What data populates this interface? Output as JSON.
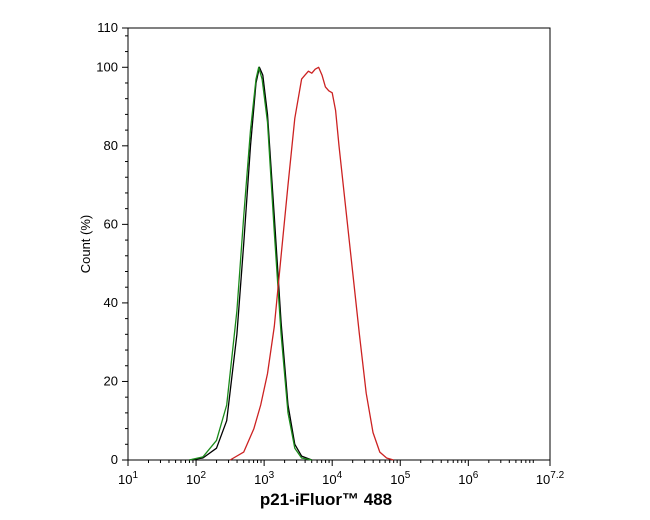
{
  "chart_data": {
    "type": "line",
    "xlabel": "p21-iFluor™ 488",
    "ylabel": "Count  (%)",
    "x_scale": "log",
    "xlim": [
      1,
      7.2
    ],
    "ylim": [
      0,
      110
    ],
    "x_ticks": [
      {
        "base": "10",
        "exp": "1",
        "value": 1
      },
      {
        "base": "10",
        "exp": "2",
        "value": 2
      },
      {
        "base": "10",
        "exp": "3",
        "value": 3
      },
      {
        "base": "10",
        "exp": "4",
        "value": 4
      },
      {
        "base": "10",
        "exp": "5",
        "value": 5
      },
      {
        "base": "10",
        "exp": "6",
        "value": 6
      },
      {
        "base": "10",
        "exp": "7.2",
        "value": 7.2
      }
    ],
    "y_ticks": [
      "0",
      "20",
      "40",
      "60",
      "80",
      "100",
      "110"
    ],
    "grid": false,
    "series": [
      {
        "color": "#000000",
        "points": [
          [
            1.9,
            0
          ],
          [
            2.1,
            0.5
          ],
          [
            2.3,
            3
          ],
          [
            2.45,
            10
          ],
          [
            2.6,
            32
          ],
          [
            2.7,
            55
          ],
          [
            2.8,
            80
          ],
          [
            2.88,
            96
          ],
          [
            2.93,
            100
          ],
          [
            2.98,
            98
          ],
          [
            3.05,
            88
          ],
          [
            3.15,
            62
          ],
          [
            3.25,
            35
          ],
          [
            3.35,
            14
          ],
          [
            3.45,
            4
          ],
          [
            3.55,
            1
          ],
          [
            3.7,
            0
          ]
        ]
      },
      {
        "color": "#1a8a1a",
        "points": [
          [
            1.9,
            0
          ],
          [
            2.1,
            0.8
          ],
          [
            2.3,
            5
          ],
          [
            2.45,
            14
          ],
          [
            2.6,
            38
          ],
          [
            2.7,
            62
          ],
          [
            2.8,
            84
          ],
          [
            2.88,
            97
          ],
          [
            2.92,
            100
          ],
          [
            2.97,
            97
          ],
          [
            3.05,
            86
          ],
          [
            3.15,
            58
          ],
          [
            3.25,
            32
          ],
          [
            3.35,
            12
          ],
          [
            3.45,
            3
          ],
          [
            3.55,
            0.5
          ],
          [
            3.7,
            0
          ]
        ]
      },
      {
        "color": "#cc2222",
        "points": [
          [
            2.5,
            0
          ],
          [
            2.7,
            2
          ],
          [
            2.85,
            8
          ],
          [
            2.95,
            14
          ],
          [
            3.05,
            22
          ],
          [
            3.15,
            34
          ],
          [
            3.25,
            52
          ],
          [
            3.35,
            70
          ],
          [
            3.45,
            87
          ],
          [
            3.55,
            97
          ],
          [
            3.6,
            98
          ],
          [
            3.65,
            99
          ],
          [
            3.7,
            98.5
          ],
          [
            3.75,
            99.5
          ],
          [
            3.8,
            100
          ],
          [
            3.85,
            98
          ],
          [
            3.9,
            95
          ],
          [
            3.95,
            94
          ],
          [
            4.0,
            93.5
          ],
          [
            4.05,
            89
          ],
          [
            4.1,
            80
          ],
          [
            4.2,
            64
          ],
          [
            4.3,
            48
          ],
          [
            4.4,
            32
          ],
          [
            4.5,
            17
          ],
          [
            4.6,
            7
          ],
          [
            4.7,
            2
          ],
          [
            4.8,
            0.5
          ],
          [
            4.9,
            0
          ]
        ]
      }
    ]
  }
}
